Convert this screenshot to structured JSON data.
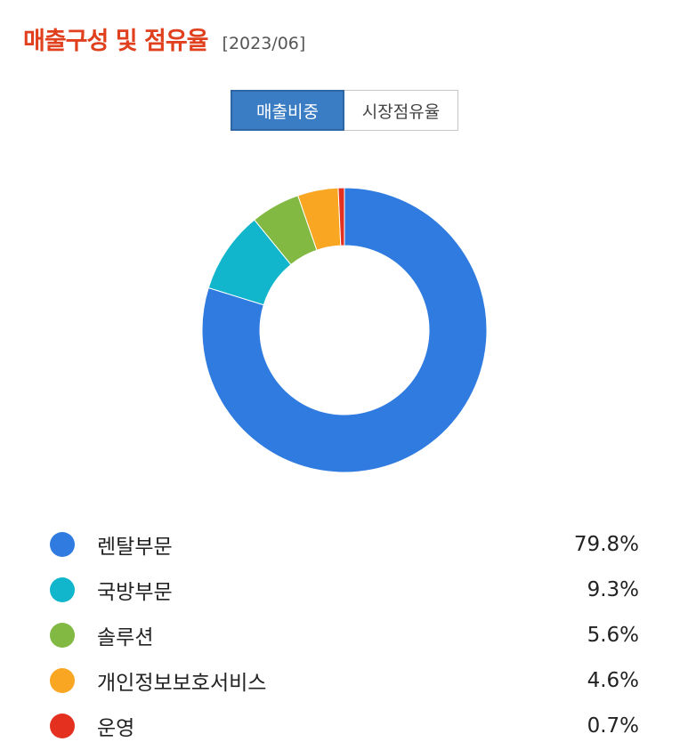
{
  "header": {
    "title": "매출구성 및 점유율",
    "date": "[2023/06]"
  },
  "tabs": [
    {
      "label": "매출비중",
      "active": true
    },
    {
      "label": "시장점유율",
      "active": false
    }
  ],
  "chart_data": {
    "type": "pie",
    "variant": "donut",
    "title": "",
    "categories": [
      "렌탈부문",
      "국방부문",
      "솔루션",
      "개인정보보호서비스",
      "운영"
    ],
    "values": [
      79.8,
      9.3,
      5.6,
      4.6,
      0.7
    ],
    "value_labels": [
      "79.8%",
      "9.3%",
      "5.6%",
      "4.6%",
      "0.7%"
    ],
    "colors": [
      "#2f7be0",
      "#12b6cc",
      "#82b942",
      "#f9a623",
      "#e3301f"
    ],
    "unit": "%",
    "legend_position": "bottom"
  }
}
